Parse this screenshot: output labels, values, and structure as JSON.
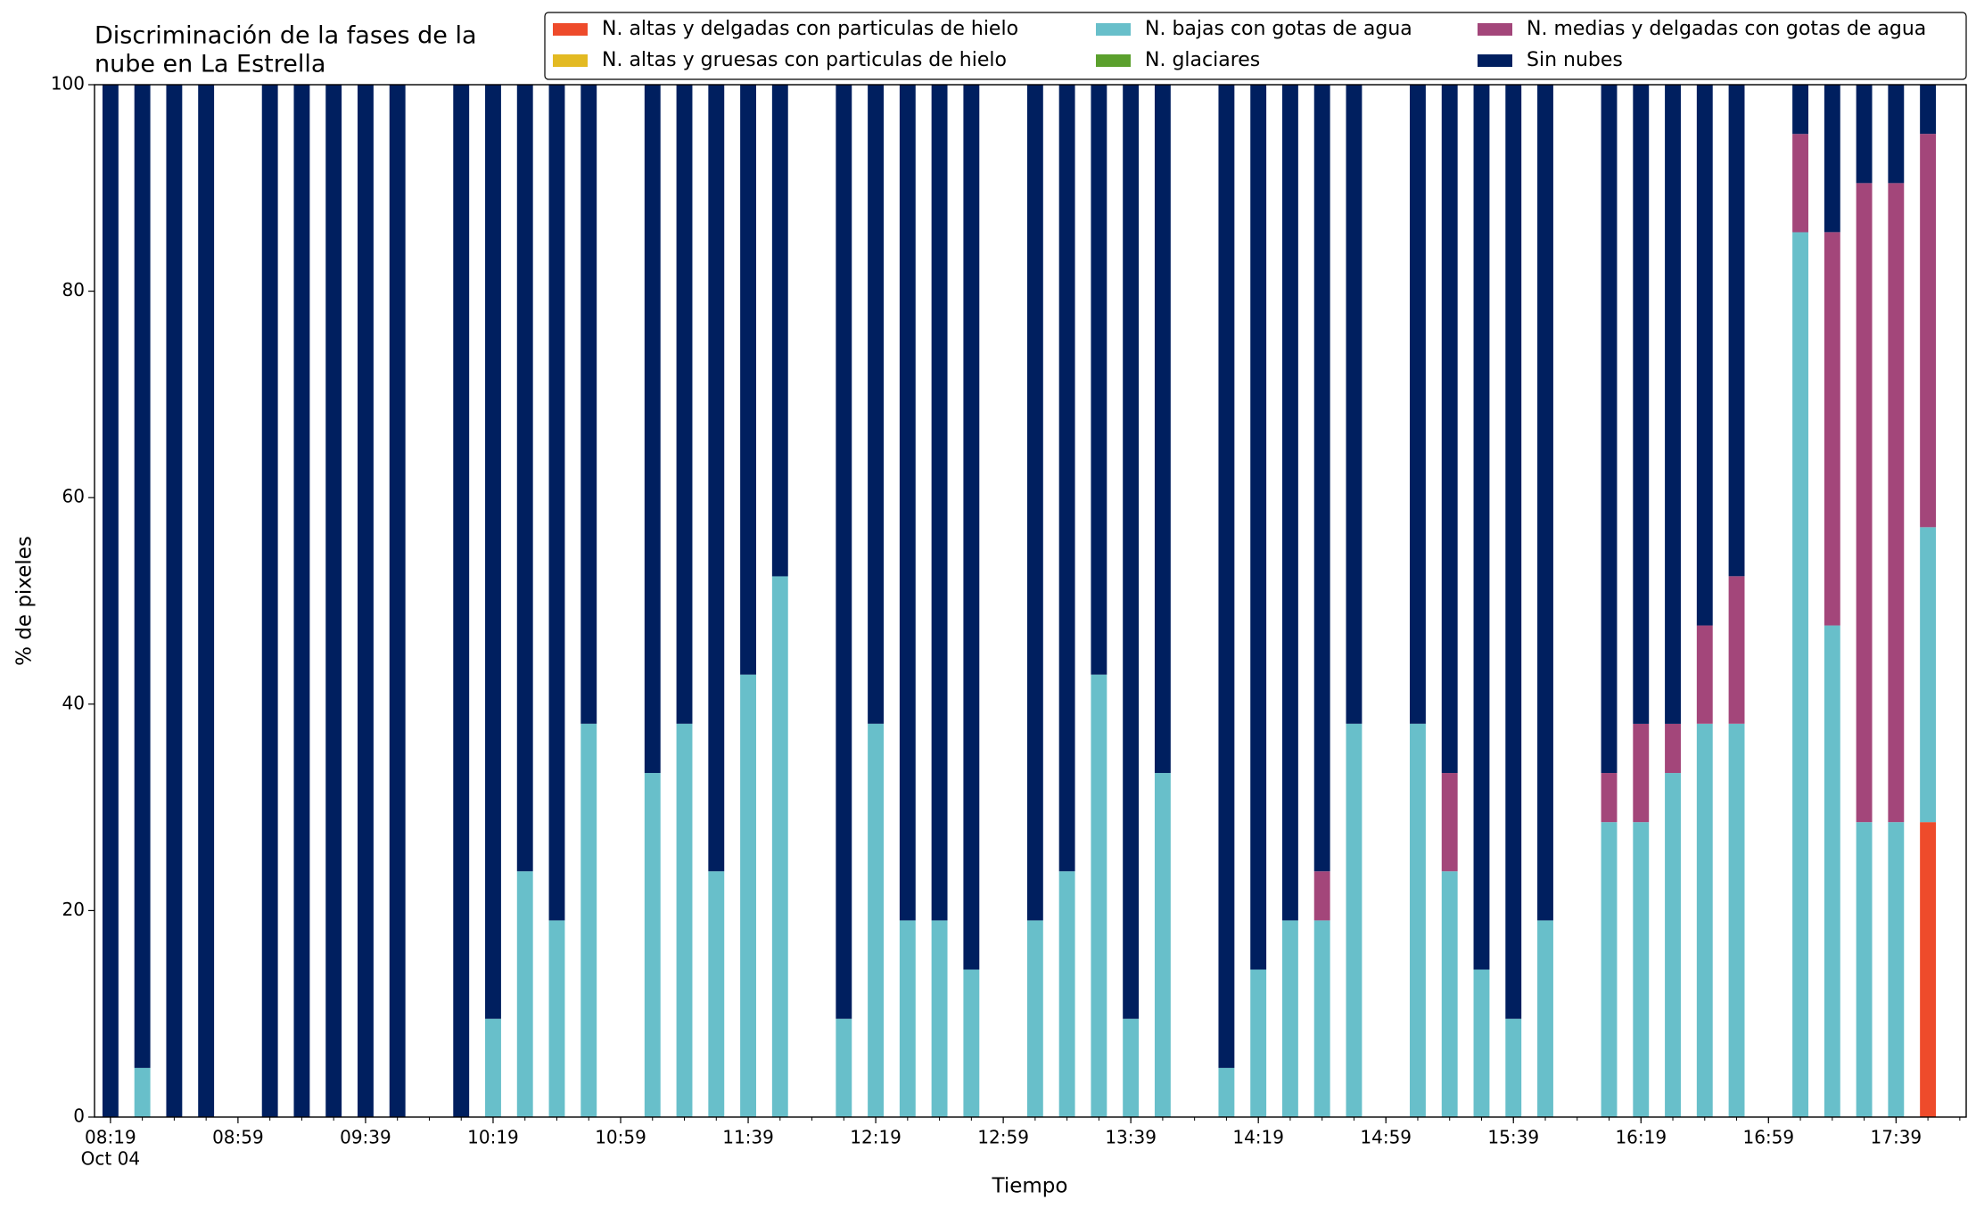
{
  "chart_data": {
    "type": "stacked_bar",
    "title": [
      "Discriminación de la fases de la",
      "nube en La Estrella"
    ],
    "x_label": "Tiempo",
    "y_label": "% de pixeles",
    "x": [
      "08:19",
      "08:29",
      "08:39",
      "08:49",
      "09:09",
      "09:19",
      "09:29",
      "09:39",
      "09:49",
      "10:09",
      "10:19",
      "10:29",
      "10:39",
      "10:49",
      "11:09",
      "11:19",
      "11:29",
      "11:39",
      "11:49",
      "12:09",
      "12:19",
      "12:29",
      "12:39",
      "12:49",
      "13:09",
      "13:19",
      "13:29",
      "13:39",
      "13:49",
      "14:09",
      "14:19",
      "14:29",
      "14:39",
      "14:49",
      "15:09",
      "15:19",
      "15:29",
      "15:39",
      "15:49",
      "16:09",
      "16:19",
      "16:29",
      "16:39",
      "16:49",
      "17:09",
      "17:19",
      "17:29",
      "17:39",
      "17:49"
    ],
    "xlim": [
      "08:14",
      "18:01"
    ],
    "xticks": [
      "08:19",
      "08:59",
      "09:39",
      "10:19",
      "10:59",
      "11:39",
      "12:19",
      "12:59",
      "13:39",
      "14:19",
      "14:59",
      "15:39",
      "16:19",
      "16:59",
      "17:39"
    ],
    "xtick_date": "Oct 04",
    "ylim": [
      0,
      100
    ],
    "yticks": [
      0,
      20,
      40,
      60,
      80,
      100
    ],
    "series": [
      {
        "name": "N. altas y delgadas con particulas de hielo",
        "color": "#ee4b2b",
        "values": [
          0,
          0,
          0,
          0,
          0,
          0,
          0,
          0,
          0,
          0,
          0,
          0,
          0,
          0,
          0,
          0,
          0,
          0,
          0,
          0,
          0,
          0,
          0,
          0,
          0,
          0,
          0,
          0,
          0,
          0,
          0,
          0,
          0,
          0,
          0,
          0,
          0,
          0,
          0,
          0,
          0,
          0,
          0,
          0,
          0,
          0,
          0,
          0,
          28.57
        ]
      },
      {
        "name": "N. altas y gruesas con particulas de hielo",
        "color": "#e3ba22",
        "values": [
          0,
          0,
          0,
          0,
          0,
          0,
          0,
          0,
          0,
          0,
          0,
          0,
          0,
          0,
          0,
          0,
          0,
          0,
          0,
          0,
          0,
          0,
          0,
          0,
          0,
          0,
          0,
          0,
          0,
          0,
          0,
          0,
          0,
          0,
          0,
          0,
          0,
          0,
          0,
          0,
          0,
          0,
          0,
          0,
          0,
          0,
          0,
          0,
          0
        ]
      },
      {
        "name": "N. bajas con gotas de agua",
        "color": "#68bfca",
        "values": [
          0,
          4.76,
          0,
          0,
          0,
          0,
          0,
          0,
          0,
          0,
          9.52,
          23.81,
          19.05,
          38.1,
          33.33,
          38.1,
          23.81,
          42.86,
          52.38,
          9.52,
          38.1,
          19.05,
          19.05,
          14.29,
          19.05,
          23.81,
          42.86,
          9.52,
          33.33,
          4.76,
          14.29,
          19.05,
          19.05,
          38.1,
          38.1,
          23.81,
          14.29,
          9.52,
          19.05,
          28.57,
          28.57,
          33.33,
          38.1,
          38.1,
          85.71,
          47.62,
          28.57,
          28.57,
          28.57
        ]
      },
      {
        "name": "N. glaciares",
        "color": "#5ba02d",
        "values": [
          0,
          0,
          0,
          0,
          0,
          0,
          0,
          0,
          0,
          0,
          0,
          0,
          0,
          0,
          0,
          0,
          0,
          0,
          0,
          0,
          0,
          0,
          0,
          0,
          0,
          0,
          0,
          0,
          0,
          0,
          0,
          0,
          0,
          0,
          0,
          0,
          0,
          0,
          0,
          0,
          0,
          0,
          0,
          0,
          0,
          0,
          0,
          0,
          0
        ]
      },
      {
        "name": "N. medias y delgadas con gotas de agua",
        "color": "#a3467a",
        "values": [
          0,
          0,
          0,
          0,
          0,
          0,
          0,
          0,
          0,
          0,
          0,
          0,
          0,
          0,
          0,
          0,
          0,
          0,
          0,
          0,
          0,
          0,
          0,
          0,
          0,
          0,
          0,
          0,
          0,
          0,
          0,
          0,
          4.76,
          0,
          0,
          9.52,
          0,
          0,
          0,
          4.76,
          9.52,
          4.76,
          9.52,
          14.29,
          9.52,
          38.1,
          61.9,
          61.9,
          38.1
        ]
      },
      {
        "name": "Sin nubes",
        "color": "#001f5f",
        "values": [
          100,
          95.24,
          100,
          100,
          100,
          100,
          100,
          100,
          100,
          100,
          90.48,
          76.19,
          80.95,
          61.9,
          66.67,
          61.9,
          76.19,
          57.14,
          47.62,
          90.48,
          61.9,
          80.95,
          80.95,
          85.71,
          80.95,
          76.19,
          57.14,
          90.48,
          66.67,
          95.24,
          85.71,
          80.95,
          76.19,
          61.9,
          61.9,
          66.67,
          85.71,
          90.48,
          80.95,
          66.67,
          61.9,
          61.9,
          52.38,
          47.62,
          4.76,
          14.29,
          9.52,
          9.52,
          4.76
        ]
      }
    ]
  }
}
